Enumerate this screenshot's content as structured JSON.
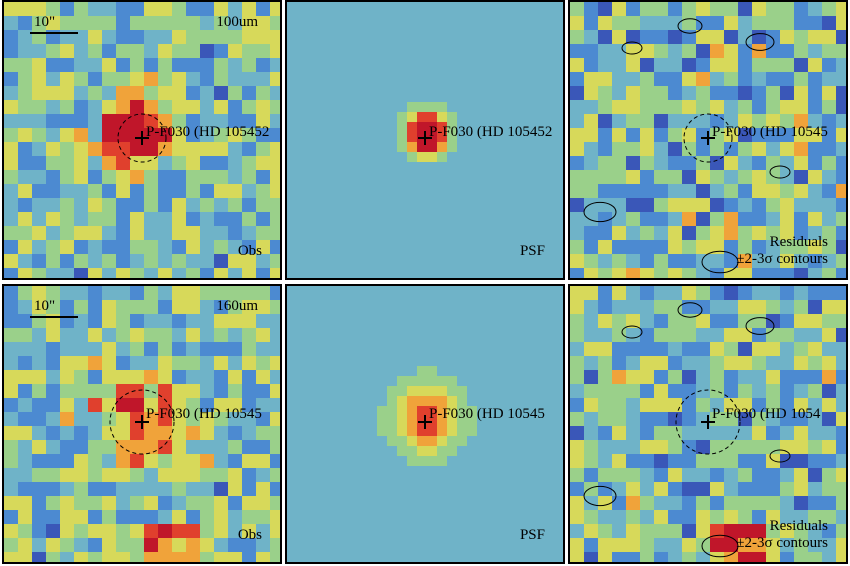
{
  "panels": [
    {
      "id": "obs-100",
      "type": "obs",
      "band": "100um",
      "scale": "10\"",
      "target": "P-F030 (HD 105452",
      "corner": "Obs",
      "seed": 11,
      "source": 0.95,
      "sigma": 1.6
    },
    {
      "id": "psf-100",
      "type": "psf",
      "band": "",
      "scale": "",
      "target": "P-F030 (HD 105452",
      "corner": "PSF",
      "seed": 12,
      "source": 1.0,
      "sigma": 1.4
    },
    {
      "id": "res-100",
      "type": "res",
      "band": "",
      "scale": "",
      "target": "P-F030 (HD 10545",
      "corner": "Residuals",
      "corner2": "±2-3σ contours",
      "seed": 13,
      "source": 0,
      "sigma": 1
    },
    {
      "id": "obs-160",
      "type": "obs",
      "band": "160um",
      "scale": "10\"",
      "target": "P-F030 (HD 10545",
      "corner": "Obs",
      "seed": 21,
      "source": 0.45,
      "sigma": 2.2
    },
    {
      "id": "psf-160",
      "type": "psf",
      "band": "",
      "scale": "",
      "target": "P-F030 (HD 10545",
      "corner": "PSF",
      "seed": 22,
      "source": 0.55,
      "sigma": 2.4
    },
    {
      "id": "res-160",
      "type": "res",
      "band": "",
      "scale": "",
      "target": "P-F030 (HD 1054",
      "corner": "Residuals",
      "corner2": "±2-3σ contours",
      "seed": 23,
      "source": 0,
      "sigma": 1
    }
  ],
  "colors": {
    "background": "#5b9bc8",
    "colormap": [
      "#3b1f8a",
      "#3a57b8",
      "#4c8ad1",
      "#6fb3c8",
      "#9ad08a",
      "#d7d95a",
      "#f0a33a",
      "#e0402d",
      "#c0162a"
    ]
  }
}
